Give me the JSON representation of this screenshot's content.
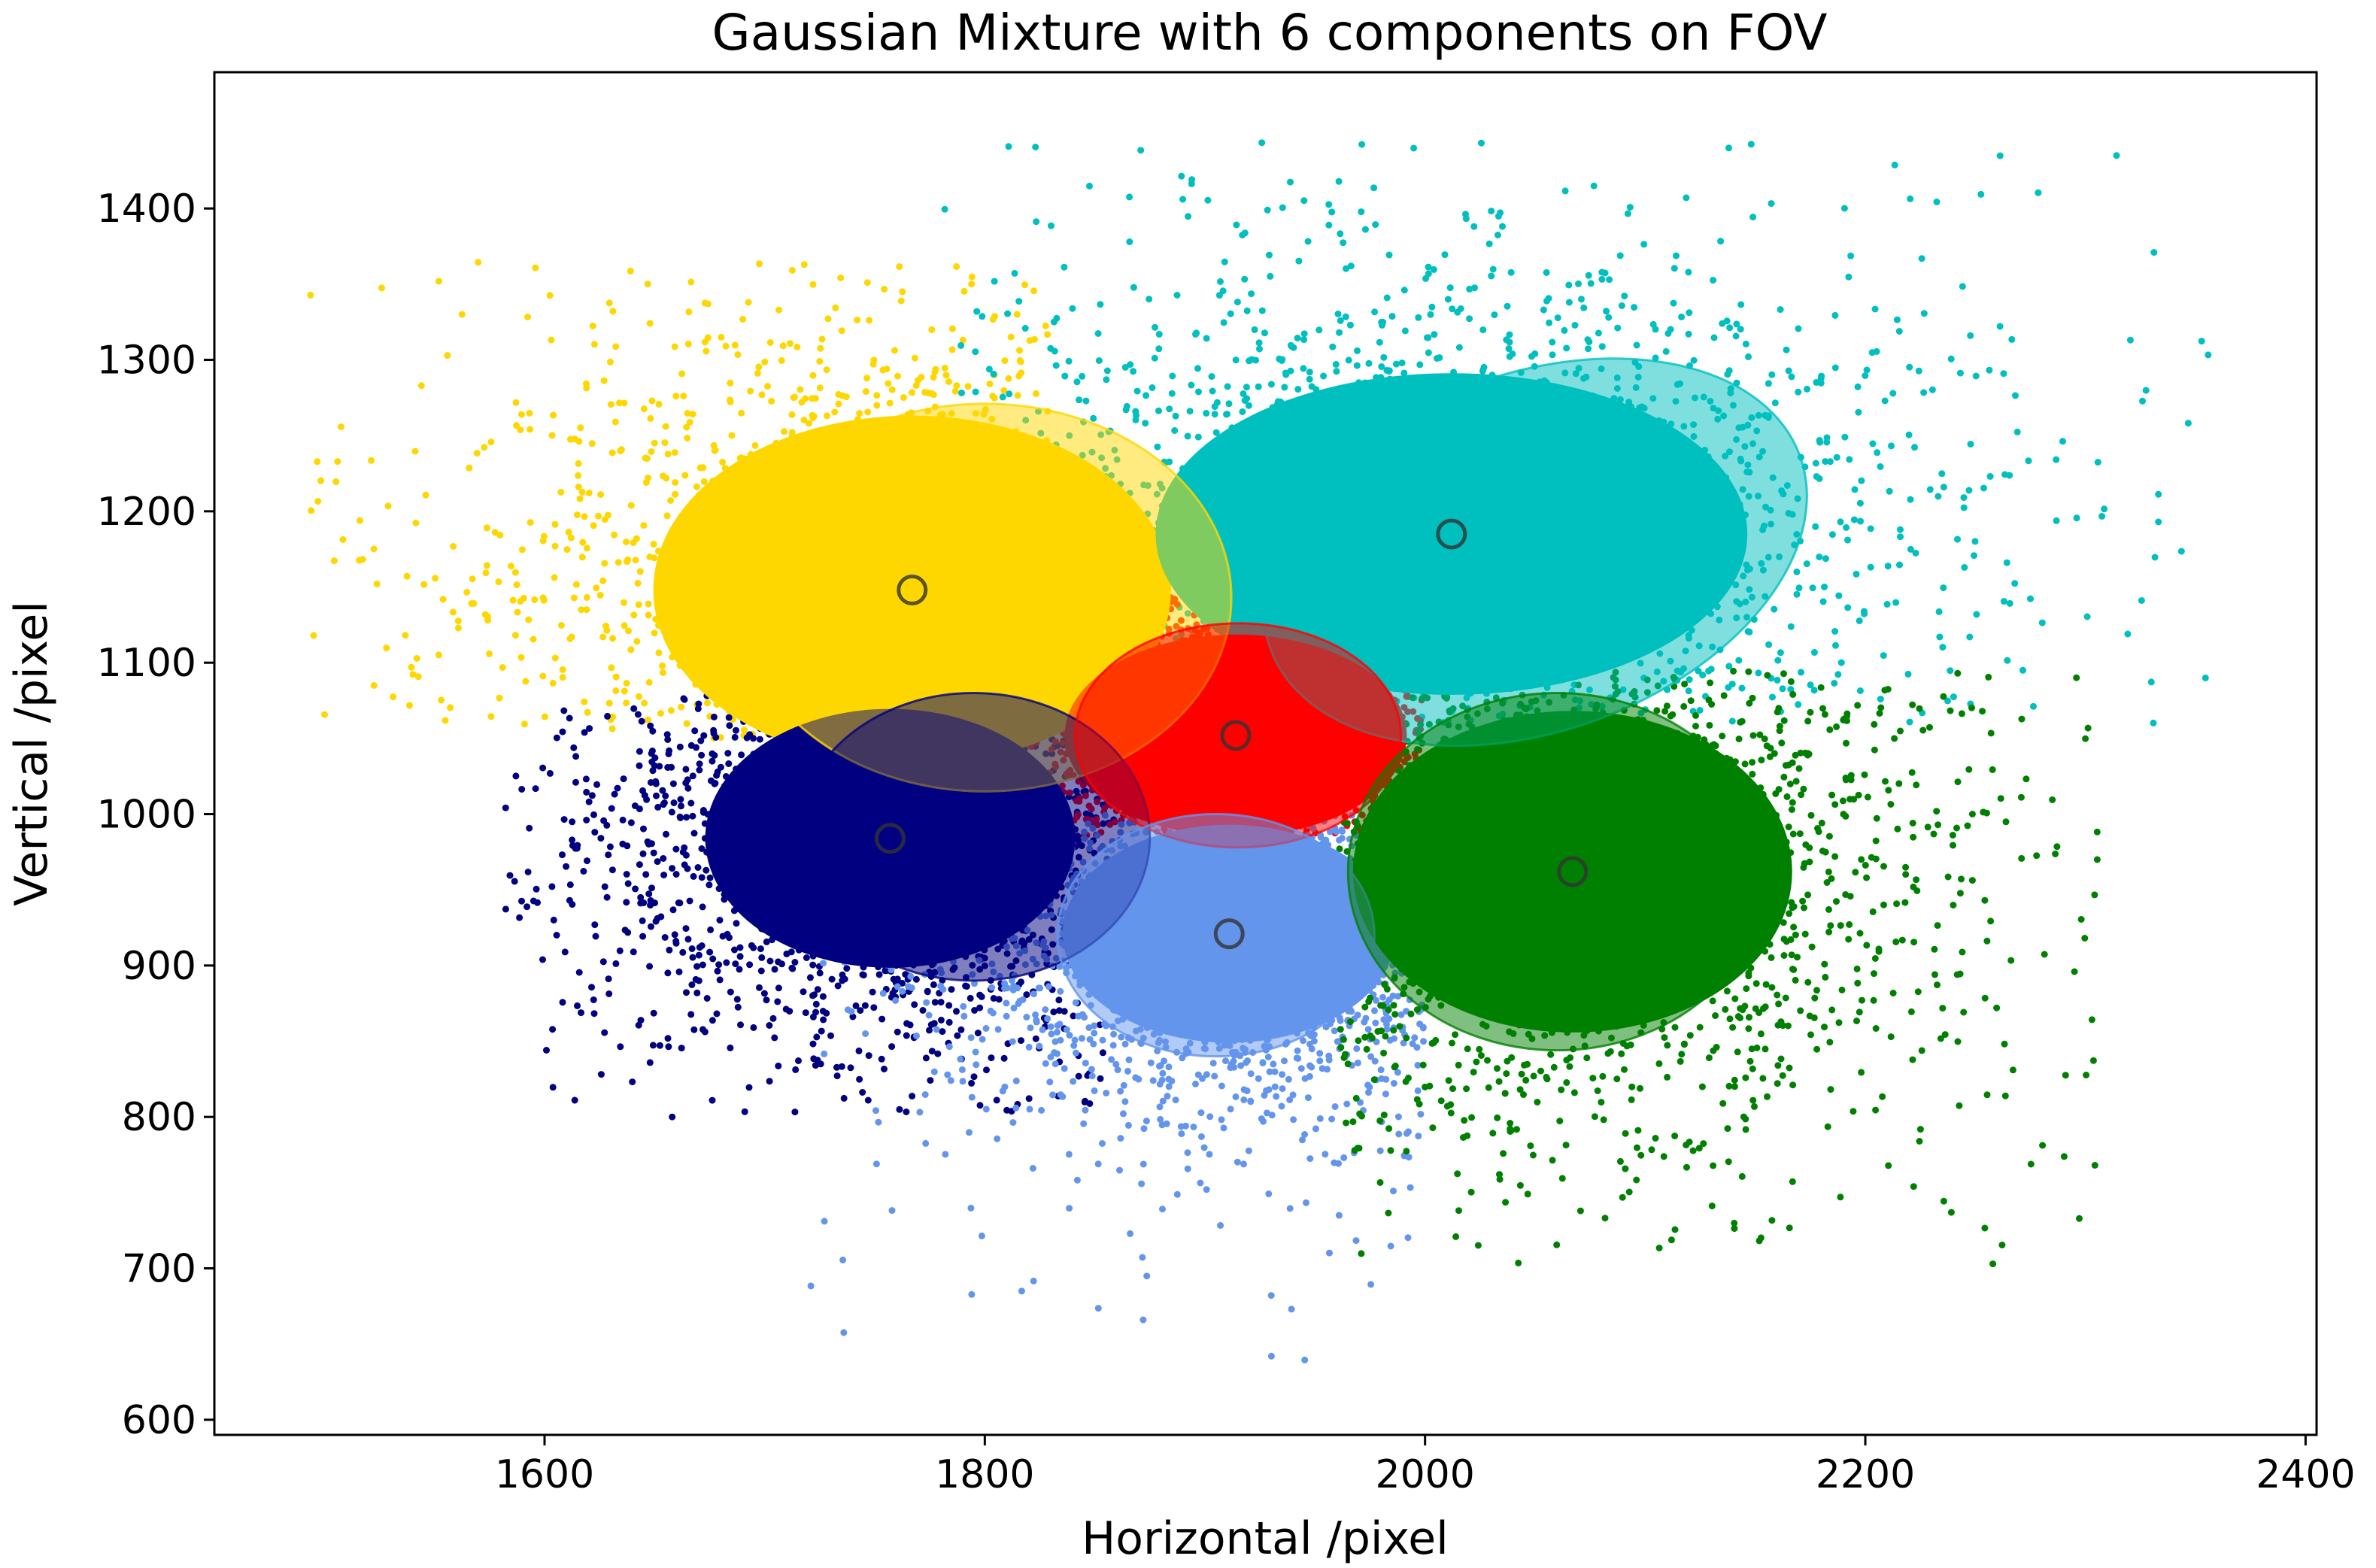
{
  "chart_data": {
    "type": "scatter",
    "title": "Gaussian Mixture with 6 components on FOV",
    "xlabel": "Horizontal /pixel",
    "ylabel": "Vertical /pixel",
    "xlim": [
      1450,
      2405
    ],
    "ylim": [
      590,
      1490
    ],
    "x_ticks": [
      {
        "value": 1600,
        "label": "1600"
      },
      {
        "value": 1800,
        "label": "1800"
      },
      {
        "value": 2000,
        "label": "2000"
      },
      {
        "value": 2200,
        "label": "2200"
      },
      {
        "value": 2400,
        "label": "2400"
      }
    ],
    "y_ticks": [
      {
        "value": 600,
        "label": "600"
      },
      {
        "value": 700,
        "label": "700"
      },
      {
        "value": 800,
        "label": "800"
      },
      {
        "value": 900,
        "label": "900"
      },
      {
        "value": 1000,
        "label": "1000"
      },
      {
        "value": 1100,
        "label": "1100"
      },
      {
        "value": 1200,
        "label": "1200"
      },
      {
        "value": 1300,
        "label": "1300"
      },
      {
        "value": 1400,
        "label": "1400"
      }
    ],
    "grid": false,
    "legend": "none",
    "components": [
      {
        "color": "#FFD700",
        "mean": [
          1767,
          1148
        ],
        "ellipse": {
          "cx": 1800,
          "cy": 1143,
          "rx": 112,
          "ry": 128,
          "angle_deg": 0
        },
        "point_extent": {
          "x": [
            1490,
            1830
          ],
          "y": [
            1050,
            1365
          ]
        }
      },
      {
        "color": "#00BFBF",
        "mean": [
          2012,
          1185
        ],
        "ellipse": {
          "cx": 2050,
          "cy": 1173,
          "rx": 128,
          "ry": 118,
          "angle_deg": 20
        },
        "point_extent": {
          "x": [
            1780,
            2360
          ],
          "y": [
            1060,
            1445
          ]
        }
      },
      {
        "color": "#000080",
        "mean": [
          1757,
          984
        ],
        "ellipse": {
          "cx": 1795,
          "cy": 985,
          "rx": 80,
          "ry": 95,
          "angle_deg": 0
        },
        "point_extent": {
          "x": [
            1580,
            1860
          ],
          "y": [
            800,
            1080
          ]
        }
      },
      {
        "color": "#FF0000",
        "mean": [
          1914,
          1052
        ],
        "ellipse": {
          "cx": 1915,
          "cy": 1052,
          "rx": 74,
          "ry": 74,
          "angle_deg": 0
        },
        "point_extent": {
          "x": [
            1820,
            2000
          ],
          "y": [
            985,
            1165
          ]
        }
      },
      {
        "color": "#6495ED",
        "mean": [
          1911,
          921
        ],
        "ellipse": {
          "cx": 1905,
          "cy": 920,
          "rx": 72,
          "ry": 80,
          "angle_deg": 0
        },
        "point_extent": {
          "x": [
            1720,
            2000
          ],
          "y": [
            630,
            1000
          ]
        }
      },
      {
        "color": "#008000",
        "mean": [
          2067,
          962
        ],
        "ellipse": {
          "cx": 2060,
          "cy": 962,
          "rx": 95,
          "ry": 118,
          "angle_deg": 0
        },
        "point_extent": {
          "x": [
            1960,
            2310
          ],
          "y": [
            700,
            1095
          ]
        }
      }
    ]
  }
}
